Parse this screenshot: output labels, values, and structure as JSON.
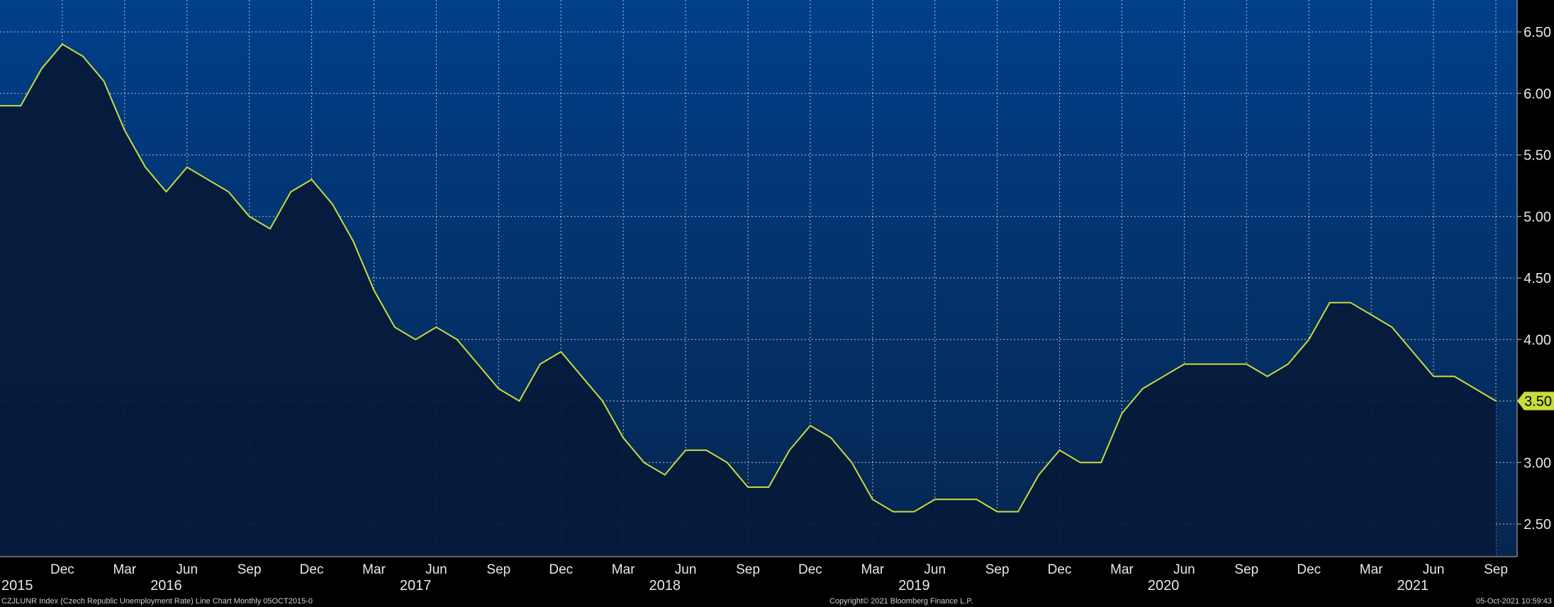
{
  "chart_data": {
    "type": "area",
    "title": "",
    "xlabel": "",
    "ylabel": "",
    "x_range": [
      "2015-09",
      "2021-09"
    ],
    "ylim": [
      2.2,
      6.8
    ],
    "y_ticks": [
      "2.50",
      "3.00",
      "3.50",
      "4.00",
      "4.50",
      "5.00",
      "5.50",
      "6.00",
      "6.50"
    ],
    "grid": true,
    "month_labels": [
      {
        "label": "Dec",
        "date": "2015-12"
      },
      {
        "label": "Mar",
        "date": "2016-03"
      },
      {
        "label": "Jun",
        "date": "2016-06"
      },
      {
        "label": "Sep",
        "date": "2016-09"
      },
      {
        "label": "Dec",
        "date": "2016-12"
      },
      {
        "label": "Mar",
        "date": "2017-03"
      },
      {
        "label": "Jun",
        "date": "2017-06"
      },
      {
        "label": "Sep",
        "date": "2017-09"
      },
      {
        "label": "Dec",
        "date": "2017-12"
      },
      {
        "label": "Mar",
        "date": "2018-03"
      },
      {
        "label": "Jun",
        "date": "2018-06"
      },
      {
        "label": "Sep",
        "date": "2018-09"
      },
      {
        "label": "Dec",
        "date": "2018-12"
      },
      {
        "label": "Mar",
        "date": "2019-03"
      },
      {
        "label": "Jun",
        "date": "2019-06"
      },
      {
        "label": "Sep",
        "date": "2019-09"
      },
      {
        "label": "Dec",
        "date": "2019-12"
      },
      {
        "label": "Mar",
        "date": "2020-03"
      },
      {
        "label": "Jun",
        "date": "2020-06"
      },
      {
        "label": "Sep",
        "date": "2020-09"
      },
      {
        "label": "Dec",
        "date": "2020-12"
      },
      {
        "label": "Mar",
        "date": "2021-03"
      },
      {
        "label": "Jun",
        "date": "2021-06"
      },
      {
        "label": "Sep",
        "date": "2021-09"
      }
    ],
    "year_labels": [
      {
        "label": "2015",
        "date": "2015-10"
      },
      {
        "label": "2016",
        "date": "2016-05"
      },
      {
        "label": "2017",
        "date": "2017-05"
      },
      {
        "label": "2018",
        "date": "2018-05"
      },
      {
        "label": "2019",
        "date": "2019-05"
      },
      {
        "label": "2020",
        "date": "2020-05"
      },
      {
        "label": "2021",
        "date": "2021-05"
      }
    ],
    "last_value_label": "3.50",
    "colors": {
      "line": "#c8dc3c",
      "area": "#061a3a",
      "bg_top": "#003f8a",
      "bg_bottom": "#062650",
      "grid": "#ffffff",
      "tag_bg": "#c8dc3c",
      "tag_text": "#000000"
    },
    "series": [
      {
        "x": [
          "2015-09",
          "2015-10",
          "2015-11",
          "2015-12",
          "2016-01",
          "2016-02",
          "2016-03",
          "2016-04",
          "2016-05",
          "2016-06",
          "2016-07",
          "2016-08",
          "2016-09",
          "2016-10",
          "2016-11",
          "2016-12",
          "2017-01",
          "2017-02",
          "2017-03",
          "2017-04",
          "2017-05",
          "2017-06",
          "2017-07",
          "2017-08",
          "2017-09",
          "2017-10",
          "2017-11",
          "2017-12",
          "2018-01",
          "2018-02",
          "2018-03",
          "2018-04",
          "2018-05",
          "2018-06",
          "2018-07",
          "2018-08",
          "2018-09",
          "2018-10",
          "2018-11",
          "2018-12",
          "2019-01",
          "2019-02",
          "2019-03",
          "2019-04",
          "2019-05",
          "2019-06",
          "2019-07",
          "2019-08",
          "2019-09",
          "2019-10",
          "2019-11",
          "2019-12",
          "2020-01",
          "2020-02",
          "2020-03",
          "2020-04",
          "2020-05",
          "2020-06",
          "2020-07",
          "2020-08",
          "2020-09",
          "2020-10",
          "2020-11",
          "2020-12",
          "2021-01",
          "2021-02",
          "2021-03",
          "2021-04",
          "2021-05",
          "2021-06",
          "2021-07",
          "2021-08",
          "2021-09"
        ],
        "values": [
          5.9,
          5.9,
          6.2,
          6.4,
          6.3,
          6.1,
          5.7,
          5.4,
          5.2,
          5.4,
          5.3,
          5.2,
          5.0,
          4.9,
          5.2,
          5.3,
          5.1,
          4.8,
          4.4,
          4.1,
          4.0,
          4.1,
          4.0,
          3.8,
          3.6,
          3.5,
          3.8,
          3.9,
          3.7,
          3.5,
          3.2,
          3.0,
          2.9,
          3.1,
          3.1,
          3.0,
          2.8,
          2.8,
          3.1,
          3.3,
          3.2,
          3.0,
          2.7,
          2.6,
          2.6,
          2.7,
          2.7,
          2.7,
          2.6,
          2.6,
          2.9,
          3.1,
          3.0,
          3.0,
          3.4,
          3.6,
          3.7,
          3.8,
          3.8,
          3.8,
          3.8,
          3.7,
          3.8,
          4.0,
          4.3,
          4.3,
          4.2,
          4.1,
          3.9,
          3.7,
          3.7,
          3.6,
          3.5
        ]
      }
    ]
  },
  "footer": {
    "left": "CZJLUNR Index (Czech Republic Unemployment Rate) Line Chart  Monthly 05OCT2015-0",
    "center": "Copyright© 2021 Bloomberg Finance L.P.",
    "right": "05-Oct-2021 10:59:43"
  }
}
